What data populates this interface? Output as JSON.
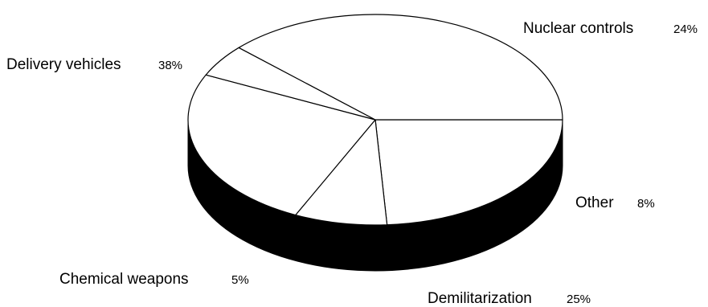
{
  "chart_data": {
    "type": "pie",
    "style": "3d",
    "categories": [
      "Nuclear controls",
      "Other",
      "Demilitarization",
      "Chemical weapons",
      "Delivery vehicles"
    ],
    "values": [
      24,
      8,
      25,
      5,
      38
    ],
    "value_labels": [
      "24%",
      "8%",
      "25%",
      "5%",
      "38%"
    ],
    "colors": {
      "top": "#ffffff",
      "side": "#000000",
      "stroke": "#000000"
    }
  }
}
